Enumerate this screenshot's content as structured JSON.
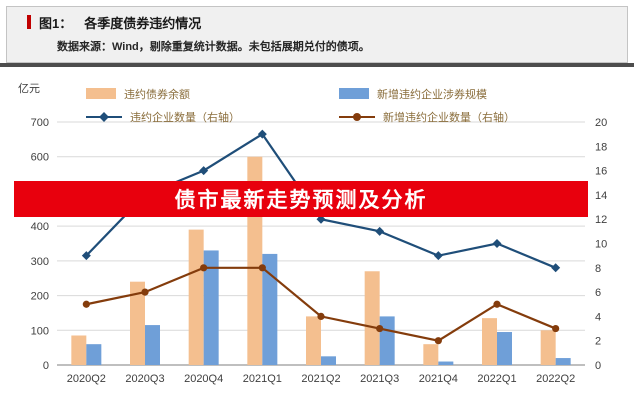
{
  "header": {
    "figure_label": "图1：",
    "figure_title": "各季度债券违约情况",
    "source_note": "数据来源：Wind，剔除重复统计数据。未包括展期兑付的债项。",
    "accent_color": "#c00000"
  },
  "overlay_banner": {
    "text": "债市最新走势预测及分析",
    "background_color": "#e8000d",
    "text_color": "#ffffff"
  },
  "chart_data": {
    "type": "combo-bar-line",
    "categories": [
      "2020Q2",
      "2020Q3",
      "2020Q4",
      "2021Q1",
      "2021Q2",
      "2021Q3",
      "2021Q4",
      "2022Q1",
      "2022Q2"
    ],
    "bar_series": [
      {
        "name": "违约债券余额",
        "axis": "left",
        "color": "#f4bf8f",
        "values": [
          85,
          240,
          390,
          600,
          140,
          270,
          60,
          135,
          100
        ]
      },
      {
        "name": "新增违约企业涉券规模",
        "axis": "left",
        "color": "#6f9fd8",
        "values": [
          60,
          115,
          330,
          320,
          25,
          140,
          10,
          95,
          20
        ]
      }
    ],
    "line_series": [
      {
        "name": "违约企业数量（右轴）",
        "axis": "right",
        "color": "#1f4e79",
        "marker": "diamond",
        "values": [
          9,
          14,
          16,
          19,
          12,
          11,
          9,
          10,
          8
        ]
      },
      {
        "name": "新增违约企业数量（右轴）",
        "axis": "right",
        "color": "#843c0c",
        "marker": "circle",
        "values": [
          5,
          6,
          8,
          8,
          4,
          3,
          2,
          5,
          3
        ]
      }
    ],
    "left_axis": {
      "label": "亿元",
      "min": 0,
      "max": 700,
      "step": 100
    },
    "right_axis": {
      "min": 0,
      "max": 20,
      "step": 2
    },
    "grid": true,
    "legend_position": "top"
  }
}
